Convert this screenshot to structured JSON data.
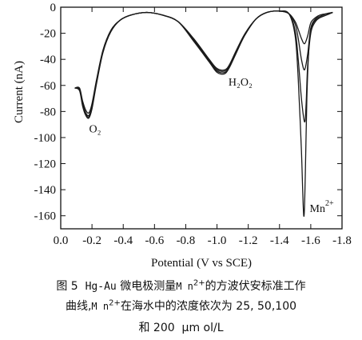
{
  "chart_data": {
    "type": "line",
    "xlabel": "Potential (V vs SCE)",
    "ylabel": "Current (nA)",
    "xlim": [
      0.0,
      -1.8
    ],
    "ylim": [
      -170,
      0
    ],
    "x_ticks": [
      {
        "value": 0.0,
        "label": "0.0"
      },
      {
        "value": -0.2,
        "label": "-0.2"
      },
      {
        "value": -0.4,
        "label": "-0.4"
      },
      {
        "value": -0.6,
        "label": "-0.6"
      },
      {
        "value": -0.8,
        "label": "-0.8"
      },
      {
        "value": -1.0,
        "label": "-1.0"
      },
      {
        "value": -1.2,
        "label": "-1.2"
      },
      {
        "value": -1.4,
        "label": "-1.4"
      },
      {
        "value": -1.6,
        "label": "-1.6"
      },
      {
        "value": -1.8,
        "label": "-1.8"
      }
    ],
    "y_ticks": [
      {
        "value": 0,
        "label": "0"
      },
      {
        "value": -20,
        "label": "-20"
      },
      {
        "value": -40,
        "label": "-40"
      },
      {
        "value": -60,
        "label": "-60"
      },
      {
        "value": -80,
        "label": "-80"
      },
      {
        "value": -100,
        "label": "-100"
      },
      {
        "value": -120,
        "label": "-120"
      },
      {
        "value": -140,
        "label": "-140"
      },
      {
        "value": -160,
        "label": "-160"
      }
    ],
    "grid": false,
    "legend": "none",
    "series": [
      {
        "x": [
          -0.09,
          -0.12,
          -0.14,
          -0.16,
          -0.18,
          -0.2,
          -0.23,
          -0.27,
          -0.32,
          -0.38,
          -0.45,
          -0.55,
          -0.65,
          -0.75,
          -0.85,
          -0.95,
          -1.0,
          -1.05,
          -1.08,
          -1.12,
          -1.18,
          -1.25,
          -1.32,
          -1.4,
          -1.46,
          -1.5,
          -1.52,
          -1.54,
          -1.56,
          -1.58,
          -1.6,
          -1.63,
          -1.66,
          -1.7,
          -1.74
        ],
        "y": [
          -62,
          -62,
          -72,
          -79,
          -81,
          -74,
          -55,
          -33,
          -18,
          -10,
          -6,
          -4,
          -6,
          -11,
          -24,
          -40,
          -47,
          -48,
          -44,
          -34,
          -20,
          -9,
          -4,
          -3,
          -5,
          -11,
          -17,
          -24,
          -28,
          -22,
          -12,
          -8,
          -6,
          -5,
          -4
        ]
      },
      {
        "x": [
          -0.09,
          -0.12,
          -0.14,
          -0.16,
          -0.18,
          -0.2,
          -0.23,
          -0.27,
          -0.32,
          -0.38,
          -0.45,
          -0.55,
          -0.65,
          -0.75,
          -0.85,
          -0.95,
          -1.0,
          -1.05,
          -1.08,
          -1.12,
          -1.18,
          -1.25,
          -1.32,
          -1.4,
          -1.46,
          -1.5,
          -1.52,
          -1.54,
          -1.56,
          -1.58,
          -1.6,
          -1.63,
          -1.66,
          -1.7,
          -1.74
        ],
        "y": [
          -62,
          -63,
          -74,
          -81,
          -83,
          -76,
          -56,
          -34,
          -18,
          -10,
          -6,
          -4,
          -6,
          -11,
          -25,
          -41,
          -48,
          -49,
          -45,
          -35,
          -21,
          -9,
          -4,
          -3,
          -5,
          -13,
          -24,
          -40,
          -48,
          -36,
          -16,
          -9,
          -7,
          -5,
          -4
        ]
      },
      {
        "x": [
          -0.09,
          -0.12,
          -0.14,
          -0.16,
          -0.18,
          -0.2,
          -0.23,
          -0.27,
          -0.32,
          -0.38,
          -0.45,
          -0.55,
          -0.65,
          -0.75,
          -0.85,
          -0.95,
          -1.0,
          -1.05,
          -1.08,
          -1.12,
          -1.18,
          -1.25,
          -1.32,
          -1.4,
          -1.46,
          -1.5,
          -1.52,
          -1.54,
          -1.56,
          -1.57,
          -1.58,
          -1.6,
          -1.63,
          -1.66,
          -1.7,
          -1.74
        ],
        "y": [
          -62,
          -63,
          -75,
          -82,
          -84,
          -77,
          -57,
          -34,
          -18,
          -10,
          -6,
          -4,
          -6,
          -11,
          -25,
          -42,
          -49,
          -50,
          -46,
          -35,
          -21,
          -9,
          -4,
          -3,
          -5,
          -18,
          -40,
          -70,
          -88,
          -75,
          -45,
          -20,
          -11,
          -8,
          -6,
          -4
        ]
      },
      {
        "x": [
          -0.09,
          -0.12,
          -0.14,
          -0.16,
          -0.18,
          -0.2,
          -0.23,
          -0.27,
          -0.32,
          -0.38,
          -0.45,
          -0.55,
          -0.65,
          -0.75,
          -0.85,
          -0.95,
          -1.0,
          -1.05,
          -1.08,
          -1.12,
          -1.18,
          -1.25,
          -1.32,
          -1.4,
          -1.46,
          -1.5,
          -1.52,
          -1.54,
          -1.555,
          -1.565,
          -1.575,
          -1.59,
          -1.61,
          -1.64,
          -1.68,
          -1.72,
          -1.74
        ],
        "y": [
          -62,
          -64,
          -76,
          -83,
          -85,
          -78,
          -58,
          -35,
          -19,
          -10,
          -6,
          -4,
          -6,
          -11,
          -26,
          -42,
          -50,
          -51,
          -46,
          -36,
          -21,
          -9,
          -4,
          -3,
          -5,
          -22,
          -55,
          -110,
          -160,
          -130,
          -70,
          -28,
          -14,
          -9,
          -7,
          -5,
          -4
        ]
      }
    ],
    "annotations": [
      {
        "text": "O₂",
        "x": -0.22,
        "y": -96
      },
      {
        "text": "H₂O₂",
        "x": -1.15,
        "y": -60
      },
      {
        "text": "Mn",
        "sup": "2+",
        "x": -1.67,
        "y": -157
      }
    ]
  },
  "caption": {
    "line1_prefix": "图 5  ",
    "line1_code": "Hg-Au",
    "line1_mid": " 微电极测量",
    "line1_ion": "M n",
    "line1_ion_sup": "2+",
    "line1_suffix": "的方波伏安标准工作",
    "line2_prefix": "曲线,",
    "line2_ion": "M n",
    "line2_ion_sup": "2+",
    "line2_suffix": "在海水中的浓度依次为 25, 50,100",
    "line3": "和 200  μm ol/L"
  }
}
